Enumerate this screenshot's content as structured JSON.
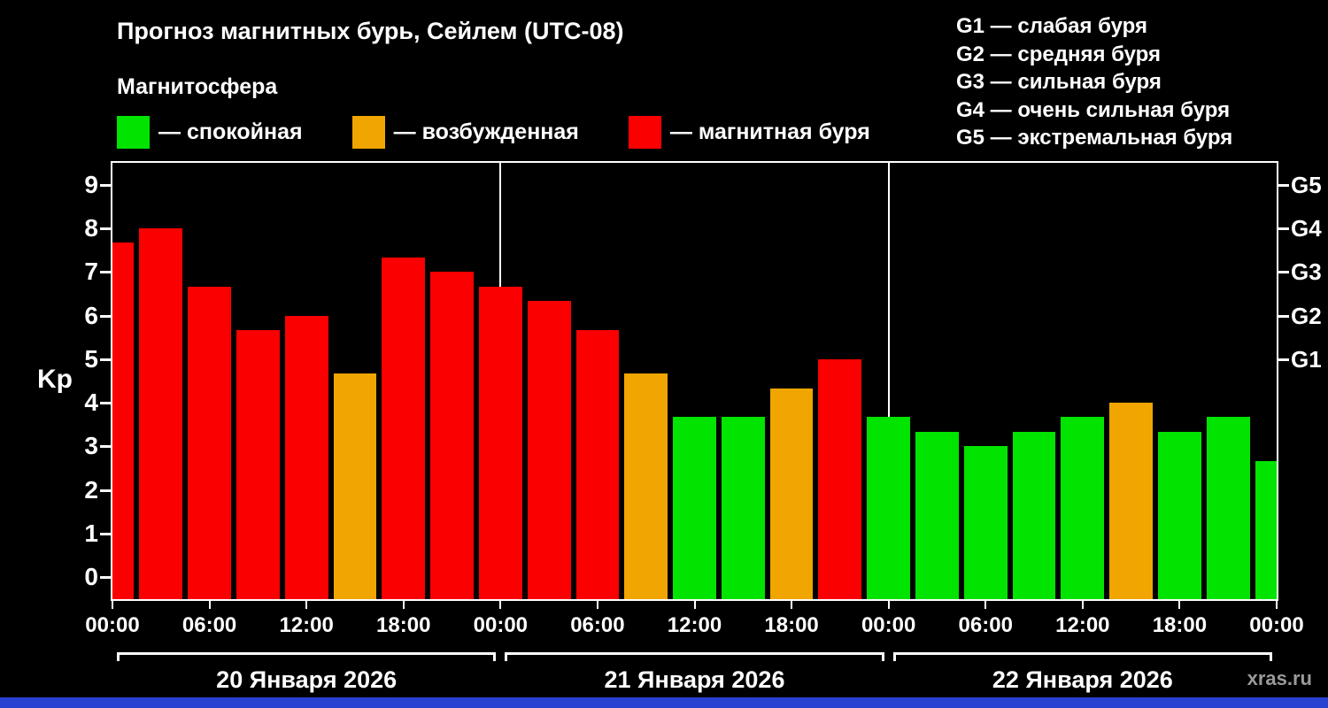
{
  "header": {
    "title": "Прогноз магнитных бурь, Сейлем (UTC-08)",
    "subtitle": "Магнитосфера",
    "watermark": "xras.ru"
  },
  "legend": {
    "items": [
      {
        "label": "— спокойная",
        "color": "#00e400"
      },
      {
        "label": "— возбужденная",
        "color": "#f0a500"
      },
      {
        "label": "— магнитная буря",
        "color": "#fb0000"
      }
    ]
  },
  "g_legend": {
    "items": [
      "G1 — слабая буря",
      "G2 — средняя буря",
      "G3 — сильная буря",
      "G4 — очень сильная буря",
      "G5 — экстремальная буря"
    ]
  },
  "footer": {
    "strip_color": "#2841d0"
  },
  "chart_data": {
    "type": "bar",
    "title": "Прогноз магнитных бурь, Сейлем (UTC-08)",
    "ylabel": "Kp",
    "ylim": [
      -0.5,
      9.5
    ],
    "hours_span": 72,
    "bar_interval_hours": 3,
    "grid": "off",
    "legend_position": "top",
    "y_ticks": [
      0,
      1,
      2,
      3,
      4,
      5,
      6,
      7,
      8,
      9
    ],
    "right_ticks": [
      {
        "label": "G1",
        "kp": 5
      },
      {
        "label": "G2",
        "kp": 6
      },
      {
        "label": "G3",
        "kp": 7
      },
      {
        "label": "G4",
        "kp": 8
      },
      {
        "label": "G5",
        "kp": 9
      }
    ],
    "x_tick_step_hours": 6,
    "x_tick_labels": [
      "00:00",
      "06:00",
      "12:00",
      "18:00",
      "00:00",
      "06:00",
      "12:00",
      "18:00",
      "00:00",
      "06:00",
      "12:00",
      "18:00",
      "00:00"
    ],
    "day_boundaries": [
      24,
      48
    ],
    "days": [
      {
        "label": "20 Января 2026",
        "start_hour": 0,
        "end_hour": 24
      },
      {
        "label": "21 Января 2026",
        "start_hour": 24,
        "end_hour": 48
      },
      {
        "label": "22 Января 2026",
        "start_hour": 48,
        "end_hour": 72
      }
    ],
    "colors": {
      "calm": "#00e400",
      "excited": "#f0a500",
      "storm": "#fb0000"
    },
    "bars": [
      {
        "hour": 0,
        "kp": 7.67,
        "state": "storm"
      },
      {
        "hour": 3,
        "kp": 8.0,
        "state": "storm"
      },
      {
        "hour": 6,
        "kp": 6.67,
        "state": "storm"
      },
      {
        "hour": 9,
        "kp": 5.67,
        "state": "storm"
      },
      {
        "hour": 12,
        "kp": 6.0,
        "state": "storm"
      },
      {
        "hour": 15,
        "kp": 4.67,
        "state": "excited"
      },
      {
        "hour": 18,
        "kp": 7.33,
        "state": "storm"
      },
      {
        "hour": 21,
        "kp": 7.0,
        "state": "storm"
      },
      {
        "hour": 24,
        "kp": 6.67,
        "state": "storm"
      },
      {
        "hour": 27,
        "kp": 6.33,
        "state": "storm"
      },
      {
        "hour": 30,
        "kp": 5.67,
        "state": "storm"
      },
      {
        "hour": 33,
        "kp": 4.67,
        "state": "excited"
      },
      {
        "hour": 36,
        "kp": 3.67,
        "state": "calm"
      },
      {
        "hour": 39,
        "kp": 3.67,
        "state": "calm"
      },
      {
        "hour": 42,
        "kp": 4.33,
        "state": "excited"
      },
      {
        "hour": 45,
        "kp": 5.0,
        "state": "storm"
      },
      {
        "hour": 48,
        "kp": 3.67,
        "state": "calm"
      },
      {
        "hour": 51,
        "kp": 3.33,
        "state": "calm"
      },
      {
        "hour": 54,
        "kp": 3.0,
        "state": "calm"
      },
      {
        "hour": 57,
        "kp": 3.33,
        "state": "calm"
      },
      {
        "hour": 60,
        "kp": 3.67,
        "state": "calm"
      },
      {
        "hour": 63,
        "kp": 4.0,
        "state": "excited"
      },
      {
        "hour": 66,
        "kp": 3.33,
        "state": "calm"
      },
      {
        "hour": 69,
        "kp": 3.67,
        "state": "calm"
      },
      {
        "hour": 72,
        "kp": 2.67,
        "state": "calm"
      }
    ]
  }
}
